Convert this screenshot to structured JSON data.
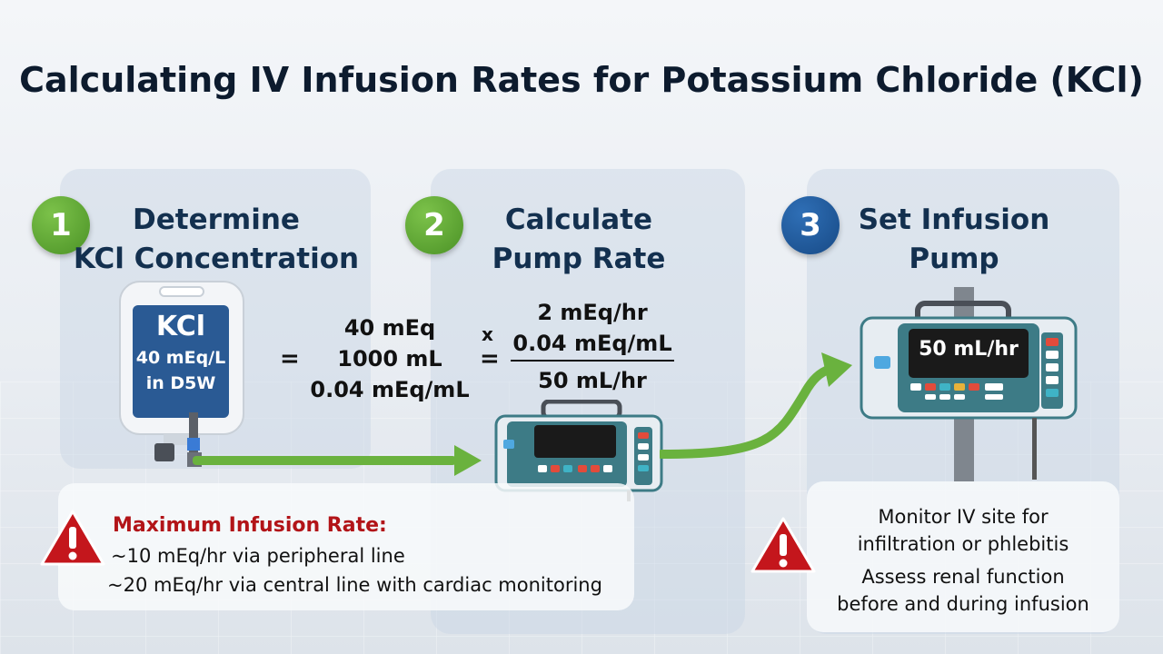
{
  "title": "Calculating IV Infusion Rates for Potassium Chloride (KCl)",
  "steps": [
    {
      "number": "1",
      "title_line1": "Determine",
      "title_line2": "KCl Concentration"
    },
    {
      "number": "2",
      "title_line1": "Calculate",
      "title_line2": "Pump Rate"
    },
    {
      "number": "3",
      "title_line1": "Set Infusion",
      "title_line2": "Pump"
    }
  ],
  "iv_bag": {
    "drug": "KCl",
    "concentration": "40 mEq/L",
    "solution": "in D5W"
  },
  "calc1": {
    "equals": "=",
    "line1": "40 mEq",
    "line2": "1000 mL",
    "line3": "0.04 mEq/mL"
  },
  "calc2": {
    "times": "x",
    "equals": "=",
    "numerator": "2 mEq/hr",
    "denominator": "0.04 mEq/mL",
    "result": "50 mL/hr"
  },
  "pump_display": "50 mL/hr",
  "max_rate": {
    "heading": "Maximum Infusion Rate:",
    "peripheral": "~10 mEq/hr via peripheral line",
    "central": "~20 mEq/hr via central line with cardiac monitoring"
  },
  "monitoring": {
    "line1": "Monitor IV site for",
    "line2": "infiltration or phlebitis",
    "line3": "Assess renal function",
    "line4": "before and during infusion"
  },
  "colors": {
    "accent_green": "#6ab23e",
    "accent_blue": "#1f5a9e",
    "warning_red": "#c4161c",
    "pump_teal": "#3d7b86"
  },
  "icons": [
    "iv-bag-icon",
    "infusion-pump-icon",
    "warning-icon",
    "arrow-icon"
  ]
}
